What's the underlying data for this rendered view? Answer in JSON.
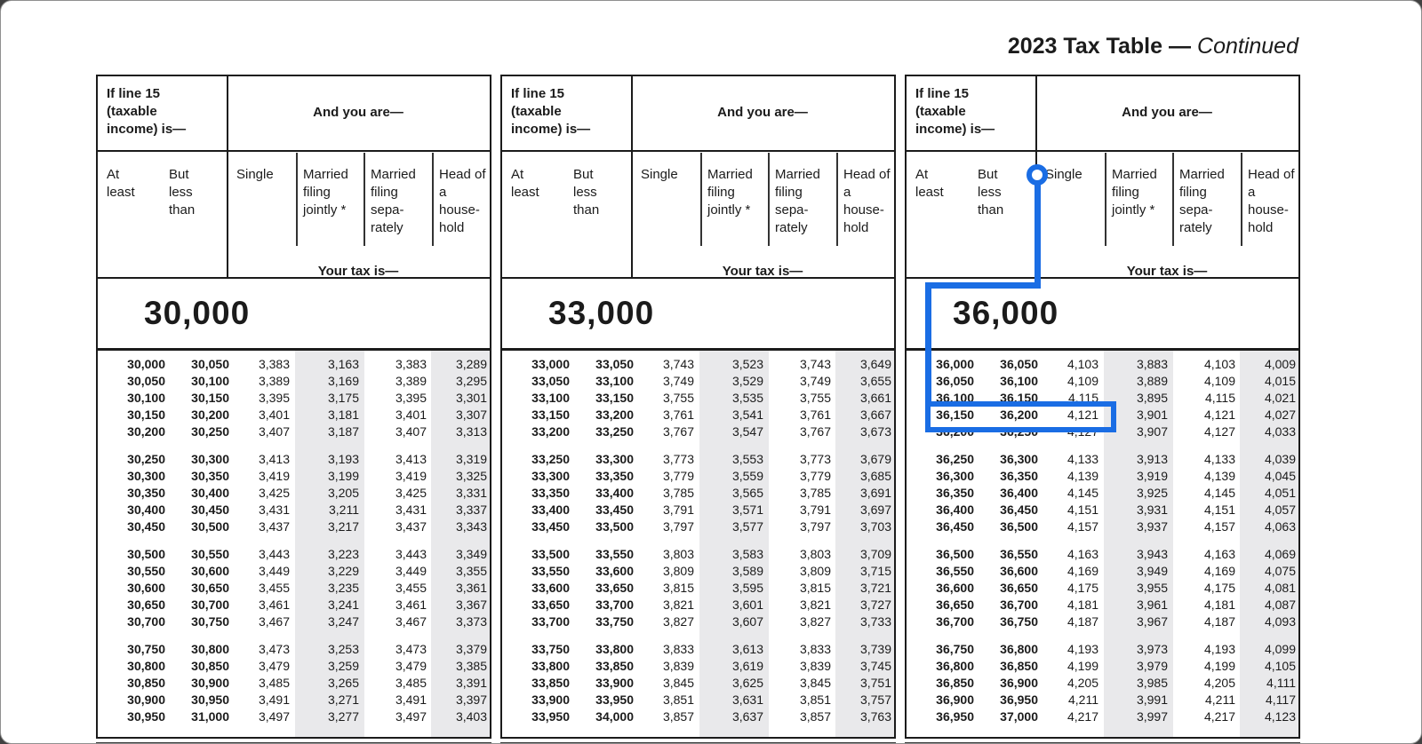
{
  "title": {
    "main": "2023 Tax Table",
    "dash": "—",
    "continued": "Continued"
  },
  "header": {
    "income_label": "If line 15\n(taxable\nincome) is—",
    "and_you_are": "And you are—",
    "at_least": "At\nleast",
    "but_less_than": "But\nless\nthan",
    "single": "Single",
    "married_jointly": "Married\nfiling\njointly *",
    "married_separately": "Married\nfiling\nsepa-\nrately",
    "head_of_household": "Head of\na\nhouse-\nhold",
    "your_tax_is": "Your tax is—"
  },
  "colors": {
    "accent_blue": "#1A6DE4",
    "shaded_band": "#E9E9EB",
    "border_dark": "#1B1B1B"
  },
  "callout": {
    "color": "#1A6DE4",
    "column": "Single",
    "highlighted_row": {
      "at_least": "36,150",
      "but_less_than": "36,200",
      "tax": "4,121"
    }
  },
  "panels": [
    {
      "section": "30,000",
      "groups": [
        [
          [
            "30,000",
            "30,050",
            "3,383",
            "3,163",
            "3,383",
            "3,289"
          ],
          [
            "30,050",
            "30,100",
            "3,389",
            "3,169",
            "3,389",
            "3,295"
          ],
          [
            "30,100",
            "30,150",
            "3,395",
            "3,175",
            "3,395",
            "3,301"
          ],
          [
            "30,150",
            "30,200",
            "3,401",
            "3,181",
            "3,401",
            "3,307"
          ],
          [
            "30,200",
            "30,250",
            "3,407",
            "3,187",
            "3,407",
            "3,313"
          ]
        ],
        [
          [
            "30,250",
            "30,300",
            "3,413",
            "3,193",
            "3,413",
            "3,319"
          ],
          [
            "30,300",
            "30,350",
            "3,419",
            "3,199",
            "3,419",
            "3,325"
          ],
          [
            "30,350",
            "30,400",
            "3,425",
            "3,205",
            "3,425",
            "3,331"
          ],
          [
            "30,400",
            "30,450",
            "3,431",
            "3,211",
            "3,431",
            "3,337"
          ],
          [
            "30,450",
            "30,500",
            "3,437",
            "3,217",
            "3,437",
            "3,343"
          ]
        ],
        [
          [
            "30,500",
            "30,550",
            "3,443",
            "3,223",
            "3,443",
            "3,349"
          ],
          [
            "30,550",
            "30,600",
            "3,449",
            "3,229",
            "3,449",
            "3,355"
          ],
          [
            "30,600",
            "30,650",
            "3,455",
            "3,235",
            "3,455",
            "3,361"
          ],
          [
            "30,650",
            "30,700",
            "3,461",
            "3,241",
            "3,461",
            "3,367"
          ],
          [
            "30,700",
            "30,750",
            "3,467",
            "3,247",
            "3,467",
            "3,373"
          ]
        ],
        [
          [
            "30,750",
            "30,800",
            "3,473",
            "3,253",
            "3,473",
            "3,379"
          ],
          [
            "30,800",
            "30,850",
            "3,479",
            "3,259",
            "3,479",
            "3,385"
          ],
          [
            "30,850",
            "30,900",
            "3,485",
            "3,265",
            "3,485",
            "3,391"
          ],
          [
            "30,900",
            "30,950",
            "3,491",
            "3,271",
            "3,491",
            "3,397"
          ],
          [
            "30,950",
            "31,000",
            "3,497",
            "3,277",
            "3,497",
            "3,403"
          ]
        ]
      ]
    },
    {
      "section": "33,000",
      "groups": [
        [
          [
            "33,000",
            "33,050",
            "3,743",
            "3,523",
            "3,743",
            "3,649"
          ],
          [
            "33,050",
            "33,100",
            "3,749",
            "3,529",
            "3,749",
            "3,655"
          ],
          [
            "33,100",
            "33,150",
            "3,755",
            "3,535",
            "3,755",
            "3,661"
          ],
          [
            "33,150",
            "33,200",
            "3,761",
            "3,541",
            "3,761",
            "3,667"
          ],
          [
            "33,200",
            "33,250",
            "3,767",
            "3,547",
            "3,767",
            "3,673"
          ]
        ],
        [
          [
            "33,250",
            "33,300",
            "3,773",
            "3,553",
            "3,773",
            "3,679"
          ],
          [
            "33,300",
            "33,350",
            "3,779",
            "3,559",
            "3,779",
            "3,685"
          ],
          [
            "33,350",
            "33,400",
            "3,785",
            "3,565",
            "3,785",
            "3,691"
          ],
          [
            "33,400",
            "33,450",
            "3,791",
            "3,571",
            "3,791",
            "3,697"
          ],
          [
            "33,450",
            "33,500",
            "3,797",
            "3,577",
            "3,797",
            "3,703"
          ]
        ],
        [
          [
            "33,500",
            "33,550",
            "3,803",
            "3,583",
            "3,803",
            "3,709"
          ],
          [
            "33,550",
            "33,600",
            "3,809",
            "3,589",
            "3,809",
            "3,715"
          ],
          [
            "33,600",
            "33,650",
            "3,815",
            "3,595",
            "3,815",
            "3,721"
          ],
          [
            "33,650",
            "33,700",
            "3,821",
            "3,601",
            "3,821",
            "3,727"
          ],
          [
            "33,700",
            "33,750",
            "3,827",
            "3,607",
            "3,827",
            "3,733"
          ]
        ],
        [
          [
            "33,750",
            "33,800",
            "3,833",
            "3,613",
            "3,833",
            "3,739"
          ],
          [
            "33,800",
            "33,850",
            "3,839",
            "3,619",
            "3,839",
            "3,745"
          ],
          [
            "33,850",
            "33,900",
            "3,845",
            "3,625",
            "3,845",
            "3,751"
          ],
          [
            "33,900",
            "33,950",
            "3,851",
            "3,631",
            "3,851",
            "3,757"
          ],
          [
            "33,950",
            "34,000",
            "3,857",
            "3,637",
            "3,857",
            "3,763"
          ]
        ]
      ]
    },
    {
      "section": "36,000",
      "groups": [
        [
          [
            "36,000",
            "36,050",
            "4,103",
            "3,883",
            "4,103",
            "4,009"
          ],
          [
            "36,050",
            "36,100",
            "4,109",
            "3,889",
            "4,109",
            "4,015"
          ],
          [
            "36,100",
            "36,150",
            "4,115",
            "3,895",
            "4,115",
            "4,021"
          ],
          [
            "36,150",
            "36,200",
            "4,121",
            "3,901",
            "4,121",
            "4,027"
          ],
          [
            "36,200",
            "36,250",
            "4,127",
            "3,907",
            "4,127",
            "4,033"
          ]
        ],
        [
          [
            "36,250",
            "36,300",
            "4,133",
            "3,913",
            "4,133",
            "4,039"
          ],
          [
            "36,300",
            "36,350",
            "4,139",
            "3,919",
            "4,139",
            "4,045"
          ],
          [
            "36,350",
            "36,400",
            "4,145",
            "3,925",
            "4,145",
            "4,051"
          ],
          [
            "36,400",
            "36,450",
            "4,151",
            "3,931",
            "4,151",
            "4,057"
          ],
          [
            "36,450",
            "36,500",
            "4,157",
            "3,937",
            "4,157",
            "4,063"
          ]
        ],
        [
          [
            "36,500",
            "36,550",
            "4,163",
            "3,943",
            "4,163",
            "4,069"
          ],
          [
            "36,550",
            "36,600",
            "4,169",
            "3,949",
            "4,169",
            "4,075"
          ],
          [
            "36,600",
            "36,650",
            "4,175",
            "3,955",
            "4,175",
            "4,081"
          ],
          [
            "36,650",
            "36,700",
            "4,181",
            "3,961",
            "4,181",
            "4,087"
          ],
          [
            "36,700",
            "36,750",
            "4,187",
            "3,967",
            "4,187",
            "4,093"
          ]
        ],
        [
          [
            "36,750",
            "36,800",
            "4,193",
            "3,973",
            "4,193",
            "4,099"
          ],
          [
            "36,800",
            "36,850",
            "4,199",
            "3,979",
            "4,199",
            "4,105"
          ],
          [
            "36,850",
            "36,900",
            "4,205",
            "3,985",
            "4,205",
            "4,111"
          ],
          [
            "36,900",
            "36,950",
            "4,211",
            "3,991",
            "4,211",
            "4,117"
          ],
          [
            "36,950",
            "37,000",
            "4,217",
            "3,997",
            "4,217",
            "4,123"
          ]
        ]
      ]
    }
  ]
}
